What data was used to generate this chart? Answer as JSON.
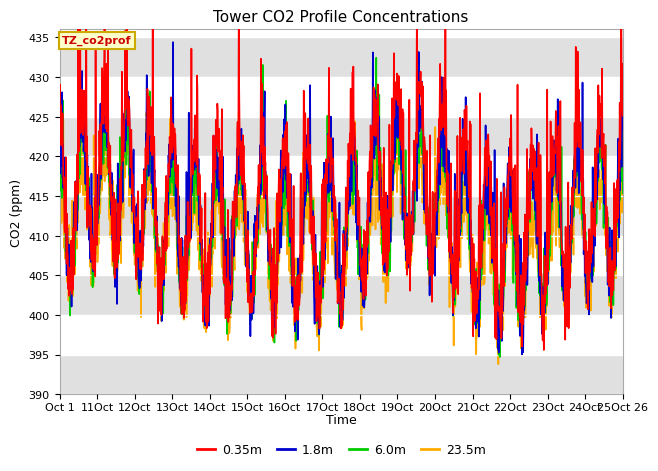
{
  "title": "Tower CO2 Profile Concentrations",
  "xlabel": "Time",
  "ylabel": "CO2 (ppm)",
  "ylim": [
    390,
    436
  ],
  "yticks": [
    390,
    395,
    400,
    405,
    410,
    415,
    420,
    425,
    430,
    435
  ],
  "xtick_labels": [
    "Oct 1",
    "11Oct",
    "12Oct",
    "13Oct",
    "14Oct",
    "15Oct",
    "16Oct",
    "17Oct",
    "18Oct",
    "19Oct",
    "20Oct",
    "21Oct",
    "22Oct",
    "23Oct",
    "24Oct",
    "25Oct 26"
  ],
  "legend_label": "TZ_co2prof",
  "series_labels": [
    "0.35m",
    "1.8m",
    "6.0m",
    "23.5m"
  ],
  "series_colors": [
    "#ff0000",
    "#0000cc",
    "#00cc00",
    "#ffaa00"
  ],
  "fig_bg_color": "#ffffff",
  "plot_bg_color": "#ffffff",
  "gray_band_color": "#e0e0e0",
  "n_points": 1500,
  "seed": 42,
  "base_mean": 410,
  "diurnal_amp": 10,
  "noise_std": 2.5,
  "spike_std": 6.0,
  "n_spikes": 200
}
